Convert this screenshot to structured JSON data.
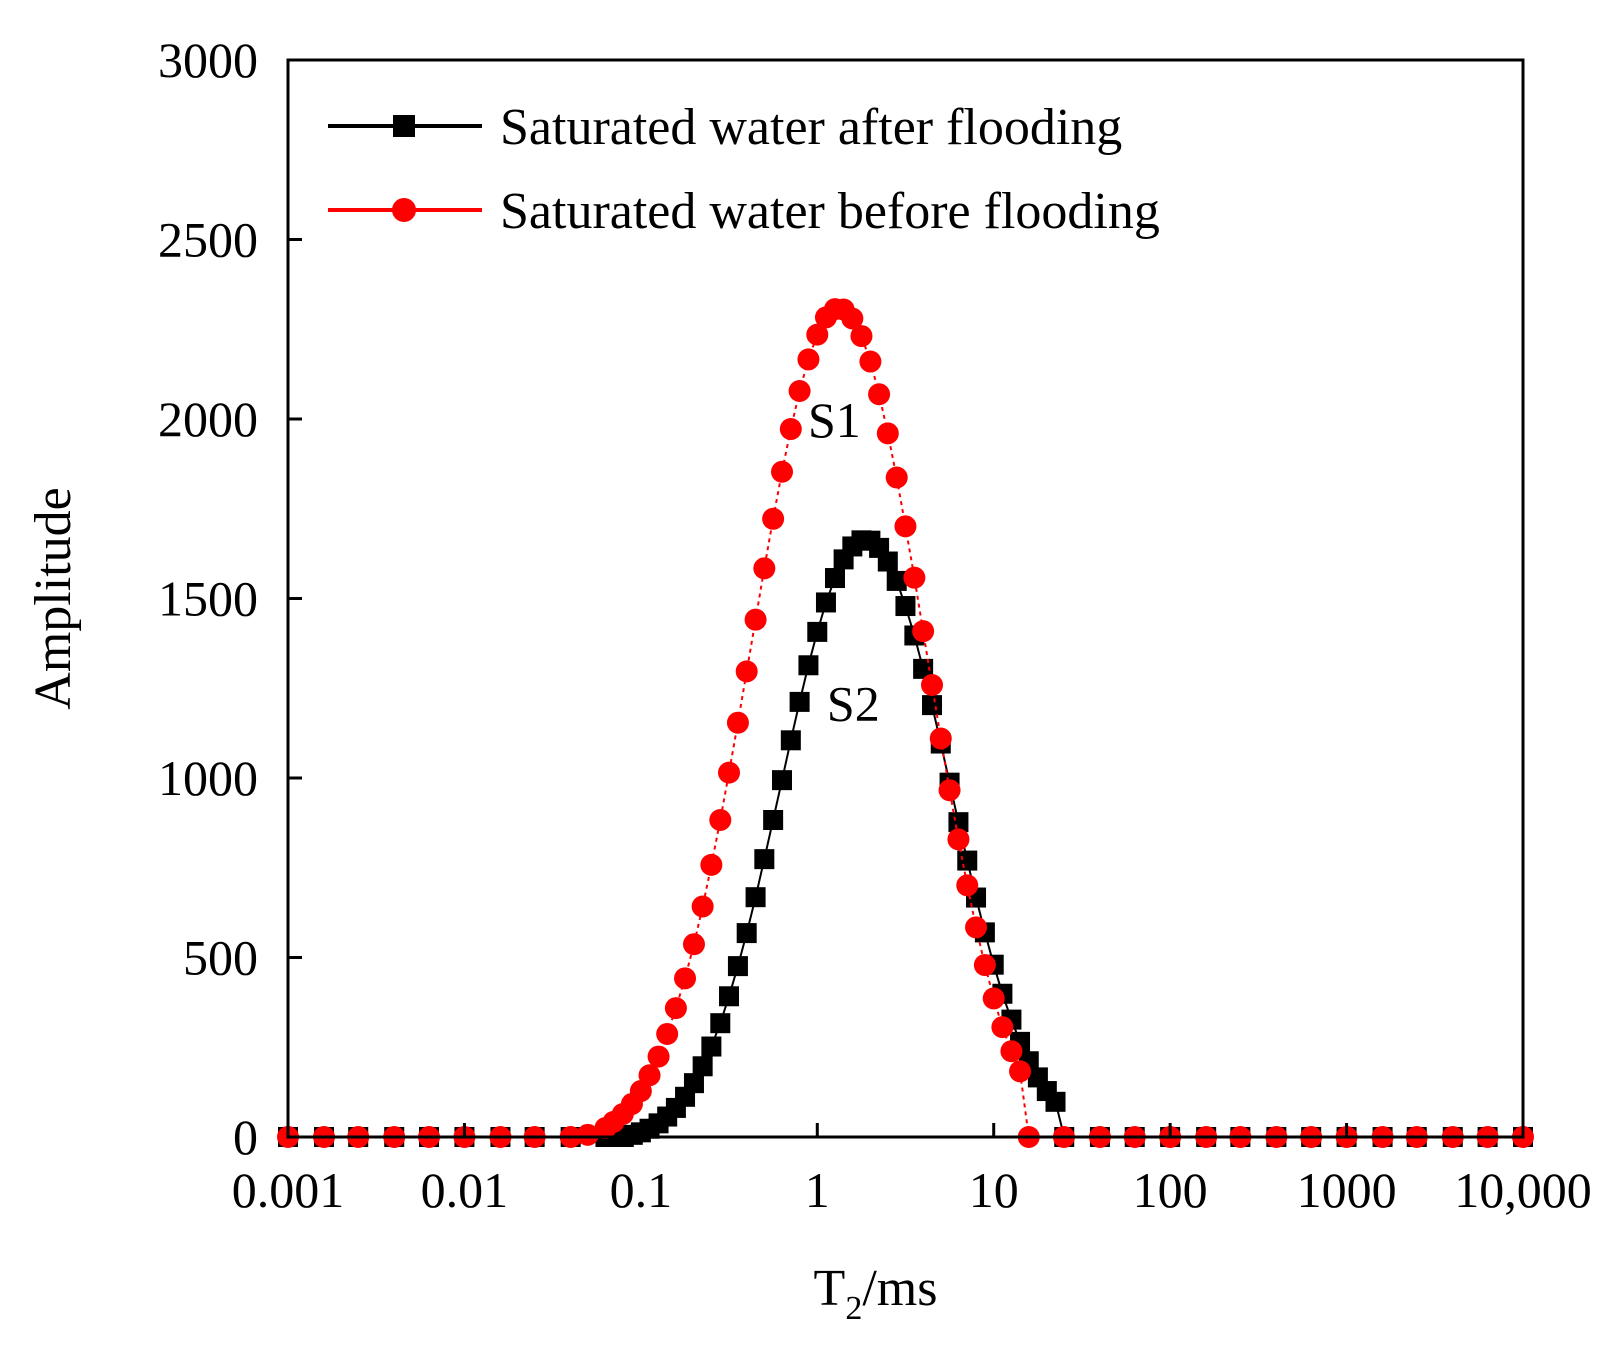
{
  "chart_data": {
    "type": "scatter",
    "xscale": "log",
    "xlim": [
      0.001,
      10000
    ],
    "ylim": [
      0,
      3000
    ],
    "xticks": [
      0.001,
      0.01,
      0.1,
      1,
      10,
      100,
      1000,
      10000
    ],
    "xtick_labels": [
      "0.001",
      "0.01",
      "0.1",
      "1",
      "10",
      "100",
      "1000",
      "10,000"
    ],
    "yticks": [
      0,
      500,
      1000,
      1500,
      2000,
      2500,
      3000
    ],
    "ytick_labels": [
      "0",
      "500",
      "1000",
      "1500",
      "2000",
      "2500",
      "3000"
    ],
    "xlabel_main": "T",
    "xlabel_sub": "2",
    "xlabel_rest": "/ms",
    "ylabel": "Amplitude",
    "legend_position": "top-left",
    "grid": false,
    "series": [
      {
        "name": "Saturated water after flooding",
        "color": "#000000",
        "marker": "square",
        "peak_label": "S2",
        "label_at": [
          1.6,
          1160
        ],
        "points": [
          [
            0.001,
            0
          ],
          [
            0.0016,
            0
          ],
          [
            0.0025,
            0
          ],
          [
            0.004,
            0
          ],
          [
            0.0063,
            0
          ],
          [
            0.01,
            0
          ],
          [
            0.016,
            0
          ],
          [
            0.025,
            0
          ],
          [
            0.04,
            0
          ],
          [
            0.063,
            0
          ],
          [
            0.08,
            0
          ],
          [
            0.09,
            6
          ],
          [
            0.1,
            13
          ],
          [
            0.112,
            23
          ],
          [
            0.126,
            38
          ],
          [
            0.141,
            57
          ],
          [
            0.158,
            81
          ],
          [
            0.178,
            112
          ],
          [
            0.2,
            150
          ],
          [
            0.224,
            197
          ],
          [
            0.251,
            252
          ],
          [
            0.282,
            317
          ],
          [
            0.316,
            392
          ],
          [
            0.355,
            476
          ],
          [
            0.398,
            568
          ],
          [
            0.447,
            668
          ],
          [
            0.501,
            774
          ],
          [
            0.562,
            883
          ],
          [
            0.631,
            994
          ],
          [
            0.708,
            1105
          ],
          [
            0.794,
            1212
          ],
          [
            0.891,
            1314
          ],
          [
            1.0,
            1407
          ],
          [
            1.12,
            1489
          ],
          [
            1.26,
            1557
          ],
          [
            1.41,
            1609
          ],
          [
            1.58,
            1645
          ],
          [
            1.78,
            1662
          ],
          [
            2.0,
            1661
          ],
          [
            2.24,
            1641
          ],
          [
            2.51,
            1603
          ],
          [
            2.82,
            1549
          ],
          [
            3.16,
            1479
          ],
          [
            3.55,
            1397
          ],
          [
            3.98,
            1304
          ],
          [
            4.47,
            1203
          ],
          [
            5.01,
            1096
          ],
          [
            5.62,
            987
          ],
          [
            6.31,
            877
          ],
          [
            7.08,
            770
          ],
          [
            7.94,
            667
          ],
          [
            8.91,
            570
          ],
          [
            10.0,
            480
          ],
          [
            11.2,
            399
          ],
          [
            12.6,
            327
          ],
          [
            14.1,
            265
          ],
          [
            15.8,
            211
          ],
          [
            17.8,
            166
          ],
          [
            20.0,
            128
          ],
          [
            22.4,
            98
          ],
          [
            25.1,
            0
          ],
          [
            40,
            0
          ],
          [
            63,
            0
          ],
          [
            100,
            0
          ],
          [
            160,
            0
          ],
          [
            250,
            0
          ],
          [
            400,
            0
          ],
          [
            630,
            0
          ],
          [
            1000,
            0
          ],
          [
            1600,
            0
          ],
          [
            2500,
            0
          ],
          [
            4000,
            0
          ],
          [
            6300,
            0
          ],
          [
            10000,
            0
          ]
        ]
      },
      {
        "name": "Saturated water before flooding",
        "color": "#ff0000",
        "marker": "circle",
        "peak_label": "S1",
        "label_at": [
          1.25,
          1950
        ],
        "points": [
          [
            0.001,
            0
          ],
          [
            0.0016,
            0
          ],
          [
            0.0025,
            0
          ],
          [
            0.004,
            0
          ],
          [
            0.0063,
            0
          ],
          [
            0.01,
            0
          ],
          [
            0.016,
            0
          ],
          [
            0.025,
            0
          ],
          [
            0.04,
            0
          ],
          [
            0.05,
            6
          ],
          [
            0.063,
            25
          ],
          [
            0.07,
            42
          ],
          [
            0.079,
            64
          ],
          [
            0.089,
            92
          ],
          [
            0.1,
            128
          ],
          [
            0.112,
            172
          ],
          [
            0.126,
            224
          ],
          [
            0.141,
            287
          ],
          [
            0.158,
            359
          ],
          [
            0.178,
            442
          ],
          [
            0.2,
            537
          ],
          [
            0.224,
            642
          ],
          [
            0.251,
            758
          ],
          [
            0.282,
            883
          ],
          [
            0.316,
            1015
          ],
          [
            0.355,
            1154
          ],
          [
            0.398,
            1297
          ],
          [
            0.447,
            1441
          ],
          [
            0.501,
            1584
          ],
          [
            0.562,
            1722
          ],
          [
            0.631,
            1853
          ],
          [
            0.708,
            1972
          ],
          [
            0.794,
            2078
          ],
          [
            0.891,
            2166
          ],
          [
            1.0,
            2235
          ],
          [
            1.12,
            2283
          ],
          [
            1.26,
            2306
          ],
          [
            1.41,
            2305
          ],
          [
            1.58,
            2280
          ],
          [
            1.78,
            2231
          ],
          [
            2.0,
            2160
          ],
          [
            2.24,
            2069
          ],
          [
            2.51,
            1960
          ],
          [
            2.82,
            1837
          ],
          [
            3.16,
            1701
          ],
          [
            3.55,
            1558
          ],
          [
            3.98,
            1409
          ],
          [
            4.47,
            1259
          ],
          [
            5.01,
            1110
          ],
          [
            5.62,
            966
          ],
          [
            6.31,
            829
          ],
          [
            7.08,
            701
          ],
          [
            7.94,
            584
          ],
          [
            8.91,
            479
          ],
          [
            10.0,
            386
          ],
          [
            11.2,
            306
          ],
          [
            12.6,
            239
          ],
          [
            14.1,
            183
          ],
          [
            15.8,
            0
          ],
          [
            25,
            0
          ],
          [
            40,
            0
          ],
          [
            63,
            0
          ],
          [
            100,
            0
          ],
          [
            160,
            0
          ],
          [
            250,
            0
          ],
          [
            400,
            0
          ],
          [
            630,
            0
          ],
          [
            1000,
            0
          ],
          [
            1600,
            0
          ],
          [
            2500,
            0
          ],
          [
            4000,
            0
          ],
          [
            6300,
            0
          ],
          [
            10000,
            0
          ]
        ]
      }
    ]
  }
}
